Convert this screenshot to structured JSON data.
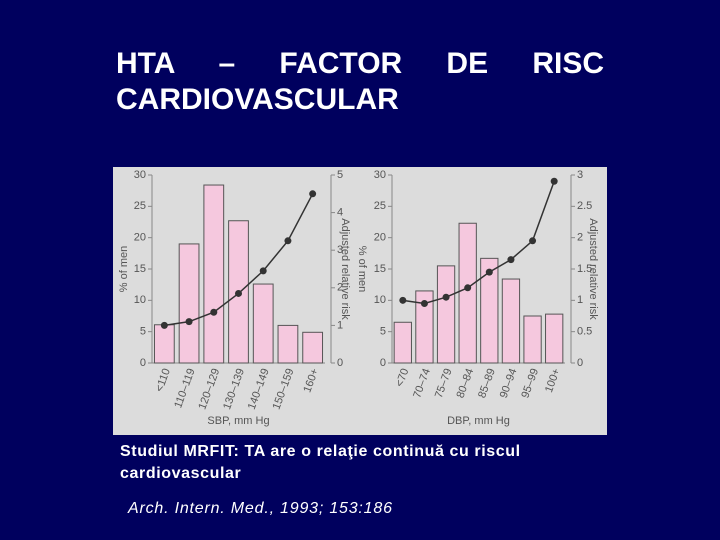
{
  "title": "HTA – FACTOR DE RISC CARDIOVASCULAR",
  "caption": "Studiul MRFIT: TA are o relaţie continuă cu riscul cardiovascular",
  "citation": "Arch. Intern. Med., 1993; 153:186",
  "chart_data": [
    {
      "type": "bar",
      "categories": [
        "<110",
        "110–119",
        "120–129",
        "130–139",
        "140–149",
        "150–159",
        "160+"
      ],
      "series": [
        {
          "type": "bar",
          "color": "#f5c8de",
          "values": [
            6.1,
            19,
            28.4,
            22.7,
            12.6,
            6,
            4.9
          ]
        },
        {
          "type": "line",
          "axis": "y2",
          "color": "#333333",
          "values": [
            1.0,
            1.1,
            1.35,
            1.85,
            2.45,
            3.25,
            4.5
          ]
        }
      ],
      "xlabel": "SBP, mm Hg",
      "ylabel": "% of men",
      "y2label": "Adjusted relative risk",
      "ylim": [
        0,
        30
      ],
      "yticks": [
        0,
        5,
        10,
        15,
        20,
        25,
        30
      ],
      "y2lim": [
        0,
        5
      ],
      "y2ticks": [
        0,
        1,
        2,
        3,
        4,
        5
      ]
    },
    {
      "type": "bar",
      "categories": [
        "<70",
        "70–74",
        "75–79",
        "80–84",
        "85–89",
        "90–94",
        "95–99",
        "100+"
      ],
      "series": [
        {
          "type": "bar",
          "color": "#f5c8de",
          "values": [
            6.5,
            11.5,
            15.5,
            22.3,
            16.7,
            13.4,
            7.5,
            7.8
          ]
        },
        {
          "type": "line",
          "axis": "y2",
          "color": "#333333",
          "values": [
            1.0,
            0.95,
            1.05,
            1.2,
            1.45,
            1.65,
            1.95,
            2.9
          ]
        }
      ],
      "xlabel": "DBP, mm Hg",
      "ylabel": "% of men",
      "y2label": "Adjusted relative risk",
      "ylim": [
        0,
        30
      ],
      "yticks": [
        0,
        5,
        10,
        15,
        20,
        25,
        30
      ],
      "y2lim": [
        0,
        3
      ],
      "y2ticks": [
        0,
        0.5,
        1,
        1.5,
        2,
        2.5,
        3
      ]
    }
  ]
}
